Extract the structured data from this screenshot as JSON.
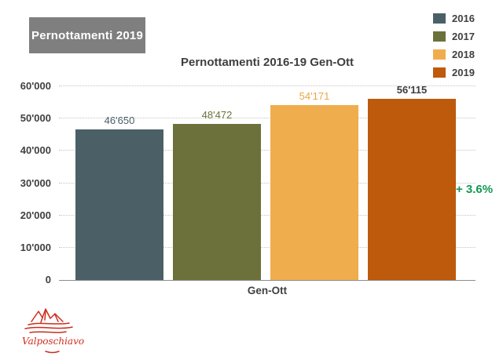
{
  "header": {
    "title": "Pernottamenti 2019",
    "background": "#7f7f7f",
    "text_color": "#ffffff"
  },
  "legend": {
    "position": "top-right",
    "items": [
      {
        "label": "2016",
        "color": "#4b6066"
      },
      {
        "label": "2017",
        "color": "#6c713c"
      },
      {
        "label": "2018",
        "color": "#f0ad4e"
      },
      {
        "label": "2019",
        "color": "#bd5a0c"
      }
    ]
  },
  "chart_data": {
    "type": "bar",
    "title": "Pernottamenti 2016-19 Gen-Ott",
    "group_label": "Gen-Ott",
    "categories": [
      "2016",
      "2017",
      "2018",
      "2019"
    ],
    "values": [
      46650,
      48472,
      54171,
      56115
    ],
    "value_labels": [
      "46'650",
      "48'472",
      "54'171",
      "56'115"
    ],
    "series_colors": [
      "#4b6066",
      "#6c713c",
      "#f0ad4e",
      "#bd5a0c"
    ],
    "value_label_colors": [
      "#4b6066",
      "#6c713c",
      "#eca544",
      "#3d3d3d"
    ],
    "ylim": [
      0,
      60000
    ],
    "grid": "dotted-horizontal",
    "y_ticks": [
      {
        "value": 0,
        "label": "0"
      },
      {
        "value": 10000,
        "label": "10'000"
      },
      {
        "value": 20000,
        "label": "20'000"
      },
      {
        "value": 30000,
        "label": "30'000"
      },
      {
        "value": 40000,
        "label": "40'000"
      },
      {
        "value": 50000,
        "label": "50'000"
      },
      {
        "value": 60000,
        "label": "60'000"
      }
    ],
    "annotation": {
      "text": "+ 3.6%",
      "color": "#129852"
    }
  },
  "footer": {
    "logo_text": "Valposchiavo",
    "logo_color": "#d02c1d"
  }
}
